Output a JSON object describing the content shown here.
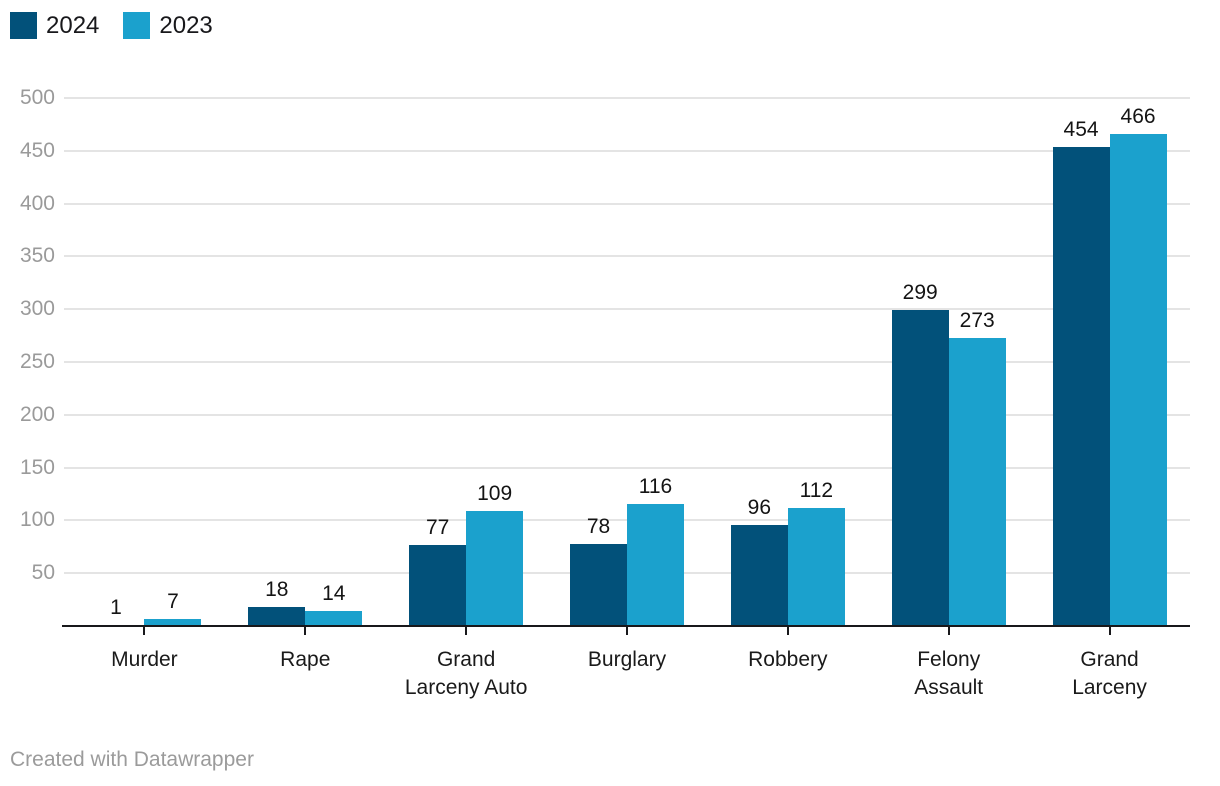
{
  "chart_data": {
    "type": "bar",
    "categories": [
      "Murder",
      "Rape",
      "Grand Larceny Auto",
      "Burglary",
      "Robbery",
      "Felony Assault",
      "Grand Larceny"
    ],
    "series": [
      {
        "name": "2024",
        "color": "#02517a",
        "values": [
          1,
          18,
          77,
          78,
          96,
          299,
          454
        ]
      },
      {
        "name": "2023",
        "color": "#1ba1cd",
        "values": [
          7,
          14,
          109,
          116,
          112,
          273,
          466
        ]
      }
    ],
    "title": "",
    "xlabel": "",
    "ylabel": "",
    "ylim": [
      0,
      500
    ],
    "ytick_step": 50,
    "yticks": [
      50,
      100,
      150,
      200,
      250,
      300,
      350,
      400,
      450,
      500
    ],
    "grid": "horizontal",
    "legend_position": "top-left",
    "value_labels": true
  },
  "colors": {
    "grid": "#e4e4e4",
    "axis_text": "#9a9a9a",
    "baseline": "#18181b",
    "value_text": "#141414",
    "category_text": "#1a1a1a",
    "footer_text": "#9b9b9b"
  },
  "footer": {
    "attribution": "Created with Datawrapper"
  }
}
